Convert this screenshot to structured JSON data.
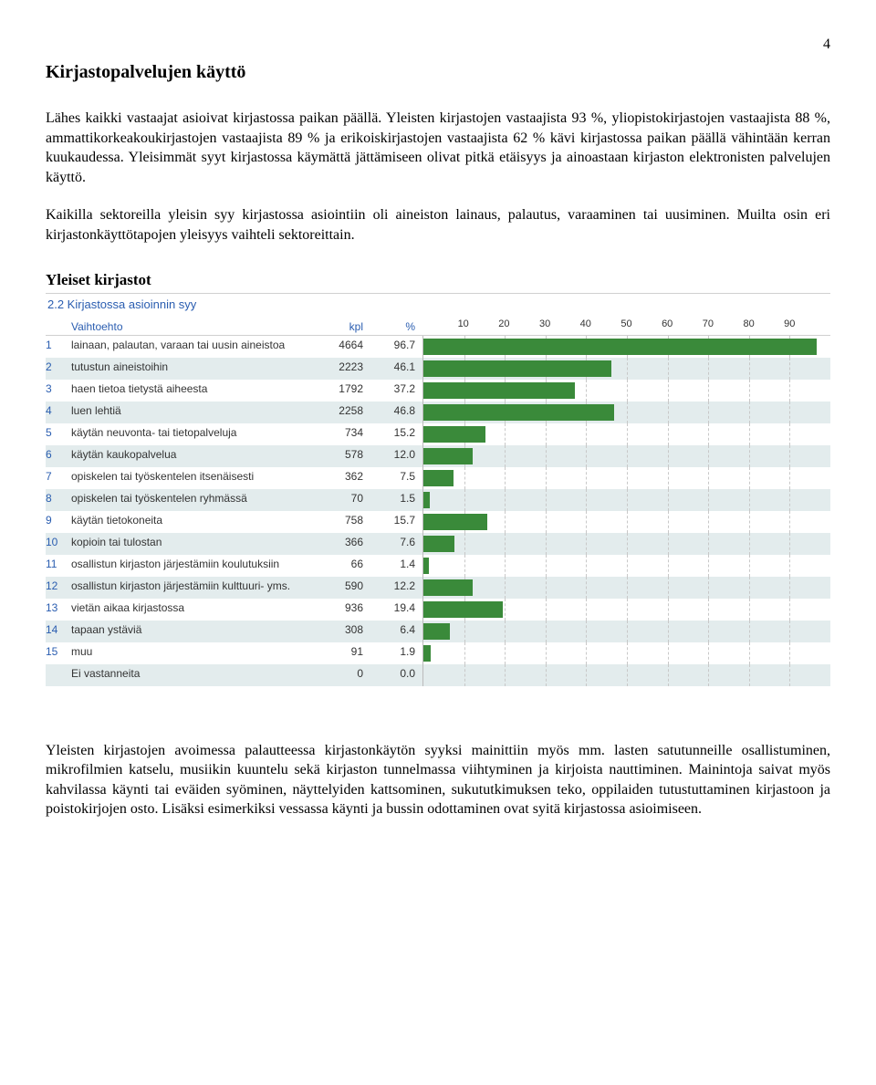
{
  "page_number": "4",
  "section_title": "Kirjastopalvelujen käyttö",
  "paragraph_1": "Lähes kaikki vastaajat asioivat kirjastossa paikan päällä. Yleisten kirjastojen vastaajista 93 %, yliopistokirjastojen vastaajista 88 %, ammattikorkeakoukirjastojen vastaajista 89 % ja erikoiskirjastojen vastaajista 62 % kävi kirjastossa paikan päällä vähintään kerran kuukaudessa. Yleisimmät syyt kirjastossa käymättä jättämiseen olivat pitkä etäisyys ja ainoastaan kirjaston elektronisten palvelujen käyttö.",
  "paragraph_2": "Kaikilla sektoreilla yleisin syy kirjastossa asiointiin oli aineiston lainaus, palautus, varaaminen tai uusiminen. Muilta osin eri kirjastonkäyttötapojen yleisyys vaihteli sektoreittain.",
  "sub_heading": "Yleiset kirjastot",
  "chart": {
    "title": "2.2 Kirjastossa asioinnin syy",
    "header_option": "Vaihtoehto",
    "header_kpl": "kpl",
    "header_pct": "%",
    "axis_ticks": [
      10,
      20,
      30,
      40,
      50,
      60,
      70,
      80,
      90
    ],
    "axis_max": 100,
    "bar_color": "#3a8a3a",
    "grid_color": "#c8c8c8",
    "alt_row_bg": "#e3eced",
    "rows": [
      {
        "idx": "1",
        "label": "lainaan, palautan, varaan tai uusin aineistoa",
        "kpl": "4664",
        "pct": "96.7",
        "val": 96.7
      },
      {
        "idx": "2",
        "label": "tutustun aineistoihin",
        "kpl": "2223",
        "pct": "46.1",
        "val": 46.1
      },
      {
        "idx": "3",
        "label": "haen tietoa tietystä aiheesta",
        "kpl": "1792",
        "pct": "37.2",
        "val": 37.2
      },
      {
        "idx": "4",
        "label": "luen lehtiä",
        "kpl": "2258",
        "pct": "46.8",
        "val": 46.8
      },
      {
        "idx": "5",
        "label": "käytän neuvonta- tai tietopalveluja",
        "kpl": "734",
        "pct": "15.2",
        "val": 15.2
      },
      {
        "idx": "6",
        "label": "käytän kaukopalvelua",
        "kpl": "578",
        "pct": "12.0",
        "val": 12.0
      },
      {
        "idx": "7",
        "label": "opiskelen tai työskentelen itsenäisesti",
        "kpl": "362",
        "pct": "7.5",
        "val": 7.5
      },
      {
        "idx": "8",
        "label": "opiskelen tai työskentelen ryhmässä",
        "kpl": "70",
        "pct": "1.5",
        "val": 1.5
      },
      {
        "idx": "9",
        "label": "käytän tietokoneita",
        "kpl": "758",
        "pct": "15.7",
        "val": 15.7
      },
      {
        "idx": "10",
        "label": "kopioin tai tulostan",
        "kpl": "366",
        "pct": "7.6",
        "val": 7.6
      },
      {
        "idx": "11",
        "label": "osallistun kirjaston järjestämiin koulutuksiin",
        "kpl": "66",
        "pct": "1.4",
        "val": 1.4
      },
      {
        "idx": "12",
        "label": "osallistun kirjaston järjestämiin kulttuuri- yms.",
        "kpl": "590",
        "pct": "12.2",
        "val": 12.2
      },
      {
        "idx": "13",
        "label": "vietän aikaa kirjastossa",
        "kpl": "936",
        "pct": "19.4",
        "val": 19.4
      },
      {
        "idx": "14",
        "label": "tapaan ystäviä",
        "kpl": "308",
        "pct": "6.4",
        "val": 6.4
      },
      {
        "idx": "15",
        "label": "muu",
        "kpl": "91",
        "pct": "1.9",
        "val": 1.9
      },
      {
        "idx": "",
        "label": "Ei vastanneita",
        "kpl": "0",
        "pct": "0.0",
        "val": 0.0
      }
    ]
  },
  "paragraph_3": "Yleisten kirjastojen avoimessa palautteessa kirjastonkäytön syyksi mainittiin myös mm. lasten satutunneille osallistuminen, mikrofilmien katselu, musiikin kuuntelu sekä kirjaston tunnelmassa viihtyminen ja kirjoista nauttiminen. Mainintoja saivat myös kahvilassa käynti tai eväiden syöminen, näyttelyiden kattsominen, sukututkimuksen teko, oppilaiden tutustuttaminen kirjastoon ja poistokirjojen osto. Lisäksi esimerkiksi vessassa käynti ja bussin odottaminen ovat syitä kirjastossa asioimiseen."
}
